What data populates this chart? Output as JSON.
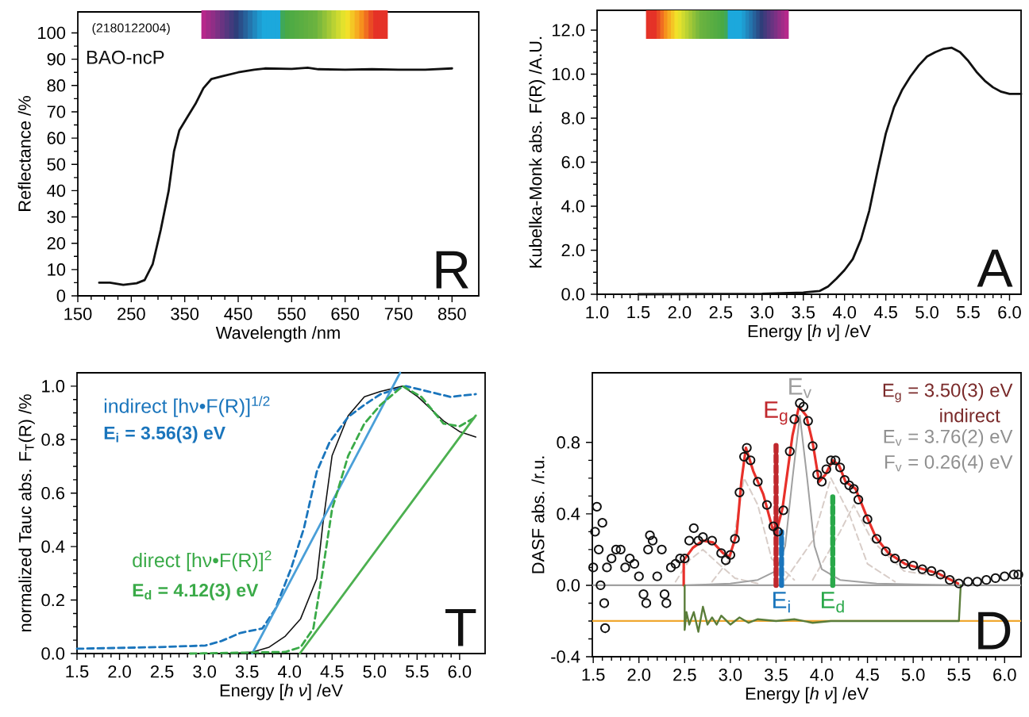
{
  "chart_data": [
    {
      "type": "line",
      "xlabel": "Wavelength /nm",
      "ylabel": "Reflectance /%",
      "xlim": [
        150,
        900
      ],
      "ylim": [
        0,
        108
      ],
      "xticks": [
        150,
        250,
        350,
        450,
        550,
        650,
        750,
        850
      ],
      "yticks": [
        0,
        10,
        20,
        30,
        40,
        50,
        60,
        70,
        80,
        90,
        100
      ],
      "annotations": [
        "(2180122004)",
        "BAO-ncP",
        "R"
      ],
      "series": [
        {
          "color": "#111111",
          "x": [
            190,
            210,
            235,
            260,
            275,
            290,
            305,
            320,
            330,
            340,
            355,
            370,
            385,
            400,
            420,
            450,
            480,
            500,
            550,
            580,
            600,
            650,
            700,
            750,
            800,
            850
          ],
          "values": [
            5,
            5,
            4.2,
            4.8,
            6,
            12,
            25,
            40,
            55,
            63,
            68,
            73,
            79,
            82.5,
            83.5,
            85,
            86,
            86.5,
            86.3,
            86.8,
            86.2,
            86,
            86.2,
            86,
            86,
            86.5
          ]
        }
      ]
    },
    {
      "type": "line",
      "xlabel": "Energy [*h ν*] /eV",
      "ylabel": "Kubelka-Monk abs. F(R) /A.U.",
      "xlim": [
        1.0,
        6.14
      ],
      "ylim": [
        0,
        12.9
      ],
      "xticks": [
        {
          "value": 1.0,
          "label": "1.0"
        },
        {
          "value": 1.5,
          "label": "1.5"
        },
        {
          "value": 2.0,
          "label": "2.0"
        },
        {
          "value": 2.5,
          "label": "2.5"
        },
        {
          "value": 3.0,
          "label": "3.0"
        },
        {
          "value": 3.5,
          "label": "3.5"
        },
        {
          "value": 4.0,
          "label": "4.0"
        },
        {
          "value": 4.5,
          "label": "4.5"
        },
        {
          "value": 5.0,
          "label": "5.0"
        },
        {
          "value": 5.5,
          "label": "5.5"
        },
        {
          "value": 6.0,
          "label": "6.0"
        }
      ],
      "yticks": [
        {
          "value": 0,
          "label": "0.0"
        },
        {
          "value": 2,
          "label": "2.0"
        },
        {
          "value": 4,
          "label": "4.0"
        },
        {
          "value": 6,
          "label": "6.0"
        },
        {
          "value": 8,
          "label": "8.0"
        },
        {
          "value": 10,
          "label": "10.0"
        },
        {
          "value": 12,
          "label": "12.0"
        }
      ],
      "annotations": [
        "A"
      ],
      "series": [
        {
          "color": "#111111",
          "x": [
            1.5,
            3.0,
            3.5,
            3.7,
            3.8,
            3.9,
            4.0,
            4.1,
            4.2,
            4.3,
            4.4,
            4.5,
            4.6,
            4.7,
            4.8,
            4.9,
            5.0,
            5.1,
            5.2,
            5.3,
            5.4,
            5.5,
            5.6,
            5.7,
            5.8,
            5.9,
            6.0,
            6.14
          ],
          "values": [
            0,
            0.02,
            0.08,
            0.15,
            0.35,
            0.7,
            1.1,
            1.6,
            2.5,
            3.8,
            5.6,
            7.3,
            8.5,
            9.3,
            9.9,
            10.4,
            10.8,
            11.0,
            11.15,
            11.2,
            11.0,
            10.6,
            10.1,
            9.7,
            9.4,
            9.2,
            9.1,
            9.1
          ]
        }
      ]
    },
    {
      "type": "line",
      "xlabel": "Energy [*h ν*] /eV",
      "ylabel": "normalized Tauc abs. F$_{T}$(R) /%",
      "xlim": [
        1.5,
        6.3
      ],
      "ylim": [
        0,
        1.05
      ],
      "xticks": [
        {
          "value": 1.5,
          "label": "1.5"
        },
        {
          "value": 2.0,
          "label": "2.0"
        },
        {
          "value": 2.5,
          "label": "2.5"
        },
        {
          "value": 3.0,
          "label": "3.0"
        },
        {
          "value": 3.5,
          "label": "3.5"
        },
        {
          "value": 4.0,
          "label": "4.0"
        },
        {
          "value": 4.5,
          "label": "4.5"
        },
        {
          "value": 5.0,
          "label": "5.0"
        },
        {
          "value": 5.5,
          "label": "5.5"
        },
        {
          "value": 6.0,
          "label": "6.0"
        }
      ],
      "yticks": [
        {
          "value": 0,
          "label": "0.0"
        },
        {
          "value": 0.2,
          "label": "0.2"
        },
        {
          "value": 0.4,
          "label": "0.4"
        },
        {
          "value": 0.6,
          "label": "0.6"
        },
        {
          "value": 0.8,
          "label": "0.8"
        },
        {
          "value": 1.0,
          "label": "1.0"
        }
      ],
      "annotations": [
        "indirect [hν•F(R)]$^{1/2}$",
        "E$_{i}$ =  3.56(3) eV",
        "direct [hν•F(R)]$^{2}$",
        "E$_{d}$ =  4.12(3) eV",
        "T"
      ],
      "series": [
        {
          "color": "#111111",
          "x": [
            3.3,
            3.57,
            3.76,
            3.95,
            4.13,
            4.32,
            4.39,
            4.5,
            4.69,
            4.88,
            5.07,
            5.33,
            5.51,
            5.81,
            6.0,
            6.19
          ],
          "values": [
            0,
            0.006,
            0.024,
            0.065,
            0.13,
            0.28,
            0.48,
            0.74,
            0.89,
            0.96,
            0.98,
            1.0,
            0.96,
            0.87,
            0.83,
            0.81
          ]
        },
        {
          "color": "#1a75bc",
          "line_style": "dashed",
          "x": [
            1.5,
            2.45,
            3.01,
            3.2,
            3.42,
            3.68,
            3.83,
            4.02,
            4.17,
            4.32,
            4.47,
            4.69,
            4.88,
            5.07,
            5.37,
            5.63,
            5.89,
            6.19
          ],
          "values": [
            0.018,
            0.024,
            0.03,
            0.047,
            0.077,
            0.094,
            0.165,
            0.32,
            0.47,
            0.68,
            0.79,
            0.885,
            0.93,
            0.97,
            1.0,
            0.98,
            0.96,
            0.97
          ]
        },
        {
          "color": "#4a9fd8",
          "x": [
            3.56,
            5.3
          ],
          "values": [
            0,
            1.05
          ]
        },
        {
          "color": "#3aaa48",
          "line_style": "dashed",
          "x": [
            2.83,
            3.95,
            4.13,
            4.28,
            4.39,
            4.5,
            4.69,
            4.88,
            5.07,
            5.33,
            5.55,
            5.81,
            6.0,
            6.19
          ],
          "values": [
            0,
            0.006,
            0.024,
            0.094,
            0.31,
            0.54,
            0.74,
            0.86,
            0.93,
            1.0,
            0.96,
            0.86,
            0.85,
            0.885
          ]
        },
        {
          "color": "#4cb050",
          "x": [
            4.12,
            6.19
          ],
          "values": [
            0,
            0.89
          ]
        }
      ]
    },
    {
      "type": "line",
      "xlabel": "Energy [*h ν*] /eV",
      "ylabel": "DASF abs. /r.u.",
      "xlim": [
        1.49,
        6.18
      ],
      "ylim": [
        -0.4,
        1.19
      ],
      "xticks": [
        {
          "value": 1.5,
          "label": "1.5"
        },
        {
          "value": 2.0,
          "label": "2.0"
        },
        {
          "value": 2.5,
          "label": "2.5"
        },
        {
          "value": 3.0,
          "label": "3.0"
        },
        {
          "value": 3.5,
          "label": "3.5"
        },
        {
          "value": 4.0,
          "label": "4.0"
        },
        {
          "value": 4.5,
          "label": "4.5"
        },
        {
          "value": 5.0,
          "label": "5.0"
        },
        {
          "value": 5.5,
          "label": "5.5"
        },
        {
          "value": 6.0,
          "label": "6.0"
        }
      ],
      "yticks": [
        {
          "value": -0.4,
          "label": "-0.4"
        },
        {
          "value": 0,
          "label": "0.0"
        },
        {
          "value": 0.4,
          "label": "0.4"
        },
        {
          "value": 0.8,
          "label": "0.8"
        }
      ],
      "annotations": [
        "E$_{g}$ =  3.50(3) eV",
        "indirect",
        "E$_{v}$ =  3.76(2) eV",
        "F$_{v}$ =  0.26(4) eV",
        "D"
      ],
      "ref_lines": [
        {
          "axis": "y",
          "value": 0,
          "color": "#a0a0a0"
        },
        {
          "axis": "y",
          "value": -0.2,
          "color": "#f0a830"
        }
      ],
      "series": [
        {
          "color": "#d8cdc8",
          "line_style": "dashed",
          "x": [
            2.4,
            2.55,
            2.7,
            2.85,
            3.05,
            3.3
          ],
          "values": [
            0.02,
            0.14,
            0.2,
            0.13,
            0.04,
            0.01
          ]
        },
        {
          "color": "#d8cdc8",
          "line_style": "dashed",
          "x": [
            2.8,
            3.0,
            3.15,
            3.3,
            3.45,
            3.7
          ],
          "values": [
            0.02,
            0.15,
            0.6,
            0.45,
            0.15,
            0.03
          ]
        },
        {
          "color": "#d8cdc8",
          "line_style": "dashed",
          "x": [
            3.6,
            3.9,
            4.1,
            4.3,
            4.5,
            4.8
          ],
          "values": [
            0.03,
            0.25,
            0.6,
            0.4,
            0.12,
            0.02
          ]
        },
        {
          "color": "#d8cdc8",
          "line_style": "dashed",
          "x": [
            3.9,
            4.2,
            4.35,
            4.55,
            4.9,
            5.5
          ],
          "values": [
            0.03,
            0.3,
            0.45,
            0.25,
            0.08,
            0.03
          ]
        },
        {
          "type": "scatter",
          "marker": "circle",
          "color": "#111111",
          "x": [
            1.5,
            1.52,
            1.54,
            1.56,
            1.58,
            1.6,
            1.62,
            1.63,
            1.65,
            1.7,
            1.75,
            1.8,
            1.85,
            1.9,
            1.95,
            2.0,
            2.05,
            2.08,
            2.1,
            2.12,
            2.15,
            2.2,
            2.25,
            2.28,
            2.3,
            2.35,
            2.4,
            2.45,
            2.5,
            2.55,
            2.6,
            2.65,
            2.7,
            2.8,
            2.9,
            2.95,
            3.0,
            3.05,
            3.1,
            3.15,
            3.18,
            3.22,
            3.3,
            3.4,
            3.47,
            3.52,
            3.58,
            3.65,
            3.7,
            3.76,
            3.8,
            3.85,
            3.9,
            3.95,
            4.0,
            4.05,
            4.1,
            4.15,
            4.2,
            4.25,
            4.3,
            4.35,
            4.4,
            4.5,
            4.6,
            4.7,
            4.8,
            4.9,
            5.0,
            5.1,
            5.2,
            5.3,
            5.4,
            5.5,
            5.6,
            5.7,
            5.8,
            5.9,
            6.0,
            6.1,
            6.15
          ],
          "values": [
            0.1,
            0.3,
            0.44,
            0.2,
            0.0,
            0.35,
            -0.1,
            -0.24,
            0.1,
            0.15,
            0.2,
            0.2,
            0.1,
            0.15,
            0.12,
            0.05,
            -0.05,
            -0.1,
            0.2,
            0.28,
            0.25,
            0.05,
            0.2,
            -0.05,
            -0.1,
            0.1,
            0.12,
            0.15,
            0.15,
            0.25,
            0.32,
            0.25,
            0.27,
            0.25,
            0.18,
            0.14,
            0.17,
            0.26,
            0.52,
            0.72,
            0.77,
            0.7,
            0.58,
            0.45,
            0.33,
            0.3,
            0.42,
            0.75,
            0.93,
            1.02,
            1.0,
            0.92,
            0.78,
            0.62,
            0.58,
            0.65,
            0.7,
            0.7,
            0.66,
            0.59,
            0.56,
            0.54,
            0.48,
            0.37,
            0.26,
            0.19,
            0.15,
            0.12,
            0.11,
            0.09,
            0.08,
            0.06,
            0.03,
            0.01,
            0.02,
            0.02,
            0.03,
            0.04,
            0.05,
            0.06,
            0.06
          ]
        },
        {
          "name": "E$_{v}$",
          "color": "#a0a0a0",
          "x": [
            2.5,
            3.0,
            3.3,
            3.5,
            3.6,
            3.68,
            3.76,
            3.84,
            3.92,
            4.0,
            4.2,
            4.6,
            5.5
          ],
          "values": [
            0,
            0.01,
            0.03,
            0.08,
            0.22,
            0.6,
            0.95,
            0.6,
            0.22,
            0.09,
            0.03,
            0.01,
            0
          ]
        },
        {
          "color": "#e8302a",
          "x": [
            2.49,
            2.49,
            2.59,
            2.7,
            2.81,
            2.92,
            2.99,
            3.07,
            3.12,
            3.17,
            3.25,
            3.36,
            3.46,
            3.5,
            3.57,
            3.68,
            3.75,
            3.83,
            3.9,
            3.97,
            4.04,
            4.12,
            4.19,
            4.26,
            4.37,
            4.48,
            4.59,
            4.73,
            4.91,
            5.13,
            5.28,
            5.42,
            5.49
          ],
          "values": [
            0,
            0.14,
            0.21,
            0.25,
            0.24,
            0.18,
            0.16,
            0.29,
            0.58,
            0.77,
            0.64,
            0.51,
            0.32,
            0.29,
            0.43,
            0.84,
            1.0,
            0.95,
            0.8,
            0.58,
            0.62,
            0.7,
            0.67,
            0.58,
            0.54,
            0.4,
            0.27,
            0.18,
            0.12,
            0.087,
            0.065,
            0.028,
            0.01
          ]
        },
        {
          "color": "#5a7d3a",
          "x": [
            2.5,
            2.5,
            2.52,
            2.55,
            2.6,
            2.65,
            2.7,
            2.75,
            2.8,
            2.85,
            2.9,
            3.0,
            3.1,
            3.2,
            3.3,
            3.5,
            3.7,
            3.9,
            4.1,
            4.5,
            5.0,
            5.5,
            5.52
          ],
          "values": [
            0,
            -0.25,
            -0.15,
            -0.22,
            -0.15,
            -0.26,
            -0.12,
            -0.22,
            -0.18,
            -0.22,
            -0.17,
            -0.22,
            -0.18,
            -0.21,
            -0.19,
            -0.2,
            -0.19,
            -0.21,
            -0.2,
            -0.2,
            -0.2,
            -0.2,
            0
          ]
        },
        {
          "name": "E$_{g}$",
          "color": "#c0282d",
          "line_style": "dashed",
          "x": [
            3.5,
            3.5
          ],
          "values": [
            0,
            0.8
          ]
        },
        {
          "name": "E$_{i}$",
          "color": "#1a75bc",
          "line_style": "dashed",
          "x": [
            3.56,
            3.56
          ],
          "values": [
            0,
            0.3
          ]
        },
        {
          "name": "E$_{d}$",
          "color": "#2aa84a",
          "line_style": "dashed",
          "x": [
            4.12,
            4.12
          ],
          "values": [
            0,
            0.5
          ]
        }
      ]
    }
  ]
}
